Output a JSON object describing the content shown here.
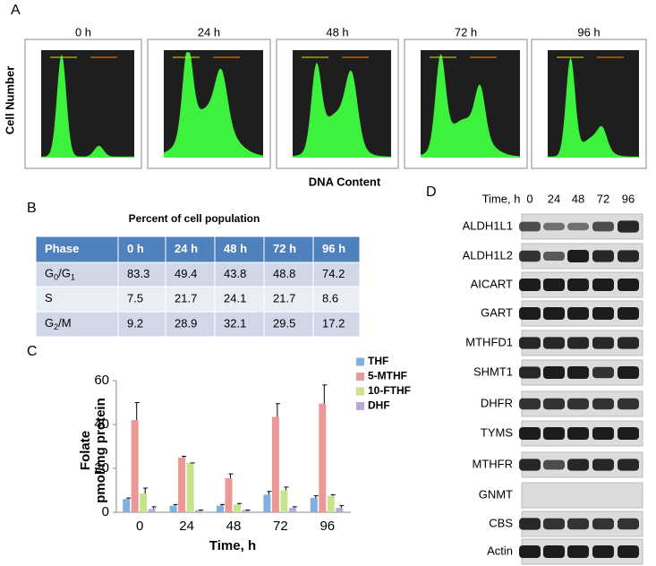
{
  "panel_a": {
    "label": "A",
    "y_label": "Cell Number",
    "x_label": "DNA Content",
    "timepoints": [
      "0 h",
      "24 h",
      "48 h",
      "72 h",
      "96 h"
    ]
  },
  "panel_b": {
    "label": "B",
    "title": "Percent of cell population",
    "table": {
      "header": [
        "Phase",
        "0 h",
        "24 h",
        "48 h",
        "72 h",
        "96 h"
      ],
      "rows": [
        [
          [
            "G",
            "0",
            "/G",
            "1"
          ],
          83.3,
          49.4,
          43.8,
          48.8,
          74.2
        ],
        [
          [
            "S"
          ],
          7.5,
          21.7,
          24.1,
          21.7,
          8.6
        ],
        [
          [
            "G",
            "2",
            "/M"
          ],
          9.2,
          28.9,
          32.1,
          29.5,
          17.2
        ]
      ]
    }
  },
  "panel_c_label": "C",
  "chart_data": {
    "type": "bar",
    "y_label": [
      "Folate",
      "pmol/mg protein"
    ],
    "x_label": "Time, h",
    "categories": [
      "0",
      "24",
      "48",
      "72",
      "96"
    ],
    "ylim": [
      0,
      60
    ],
    "yticks": [
      0,
      20,
      40,
      60
    ],
    "series": [
      {
        "name": "THF",
        "color": "#7fb0e0",
        "values": [
          6,
          3,
          3,
          8,
          6.5
        ],
        "errors": [
          0.5,
          0.5,
          0.5,
          1.5,
          1
        ]
      },
      {
        "name": "5-MTHF",
        "color": "#ec9896",
        "values": [
          42,
          25,
          15.5,
          43.5,
          49.5
        ],
        "errors": [
          8,
          0.5,
          2,
          6,
          8.5
        ]
      },
      {
        "name": "10-FTHF",
        "color": "#c8e38e",
        "values": [
          8.5,
          22.5,
          3.5,
          10,
          7.5
        ],
        "errors": [
          2.5,
          0,
          0.5,
          1.5,
          0.5
        ]
      },
      {
        "name": "DHF",
        "color": "#b9a9d8",
        "values": [
          1.5,
          1,
          1,
          2,
          2
        ],
        "errors": [
          1,
          0,
          0,
          0.5,
          1
        ]
      }
    ]
  },
  "panel_d": {
    "label": "D",
    "time_label": "Time, h",
    "times": [
      "0",
      "24",
      "48",
      "72",
      "96"
    ],
    "proteins": [
      "ALDH1L1",
      "ALDH1L2",
      "AICART",
      "GART",
      "MTHFD1",
      "SHMT1",
      "DHFR",
      "TYMS",
      "MTHFR",
      "GNMT",
      "CBS",
      "Actin"
    ]
  }
}
